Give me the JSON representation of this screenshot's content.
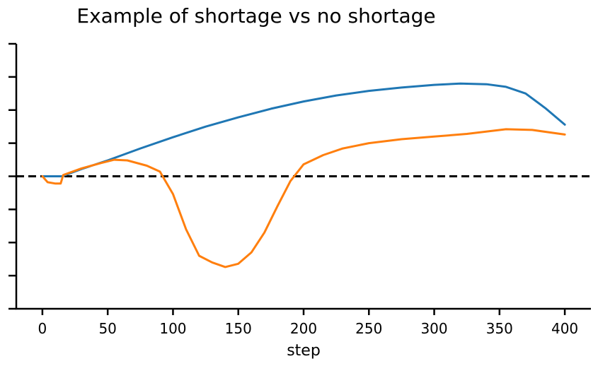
{
  "chart_data": {
    "type": "line",
    "title": "Example of shortage vs no shortage",
    "xlabel": "step",
    "ylabel": "",
    "xlim": [
      -20,
      420
    ],
    "ylim": [
      -2.0,
      2.0
    ],
    "xticks": [
      0,
      50,
      100,
      150,
      200,
      250,
      300,
      350,
      400
    ],
    "xtick_labels": [
      "0",
      "50",
      "100",
      "150",
      "200",
      "250",
      "300",
      "350",
      "400"
    ],
    "yticks": [
      -2.0,
      -1.5,
      -1.0,
      -0.5,
      0.0,
      0.5,
      1.0,
      1.5,
      2.0
    ],
    "ytick_labels_visible": false,
    "grid": false,
    "reference_line": {
      "y": 0.0,
      "style": "dashed",
      "color": "#000000"
    },
    "series": [
      {
        "color": "#1f77b4",
        "x": [
          0,
          15,
          30,
          50,
          75,
          100,
          125,
          150,
          175,
          200,
          225,
          250,
          275,
          300,
          320,
          340,
          355,
          370,
          385,
          400
        ],
        "y": [
          0.0,
          0.0,
          0.11,
          0.24,
          0.42,
          0.59,
          0.75,
          0.89,
          1.02,
          1.13,
          1.22,
          1.29,
          1.34,
          1.38,
          1.4,
          1.39,
          1.35,
          1.25,
          1.03,
          0.78
        ]
      },
      {
        "color": "#ff7f0e",
        "x": [
          0,
          4,
          10,
          14,
          16,
          30,
          45,
          55,
          65,
          80,
          90,
          100,
          110,
          120,
          130,
          140,
          150,
          160,
          170,
          180,
          190,
          200,
          215,
          230,
          250,
          275,
          300,
          325,
          355,
          375,
          400
        ],
        "y": [
          0.0,
          -0.09,
          -0.11,
          -0.11,
          0.02,
          0.12,
          0.2,
          0.25,
          0.24,
          0.16,
          0.07,
          -0.27,
          -0.8,
          -1.2,
          -1.3,
          -1.37,
          -1.32,
          -1.15,
          -0.85,
          -0.45,
          -0.07,
          0.18,
          0.32,
          0.42,
          0.5,
          0.56,
          0.6,
          0.64,
          0.71,
          0.7,
          0.63
        ]
      }
    ]
  }
}
